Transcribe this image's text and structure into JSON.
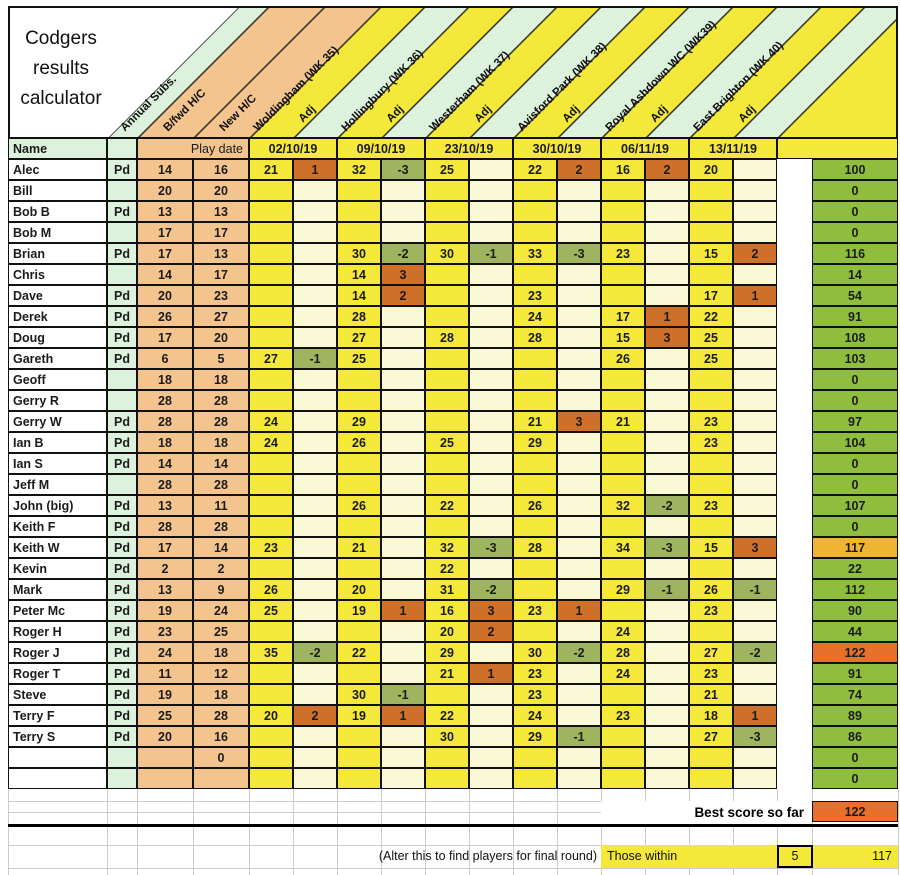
{
  "title": {
    "line1": "Codgers",
    "line2": "results",
    "line3": "calculator"
  },
  "colors": {
    "yellow": "#F4E83B",
    "mint": "#DDF2DC",
    "peach": "#F4C48F",
    "cream": "#FBF8D6",
    "olive": "#8FBE3F",
    "adj_pos": "#CE7029",
    "adj_neg": "#9FB45F",
    "amber": "#F0B432",
    "best": "#E7702B",
    "grid_line": "#cccccc",
    "border": "#111111"
  },
  "header": {
    "name_label": "Name",
    "play_date_label": "Play date",
    "bands": [
      {
        "label": "Annual Subs.",
        "kind": "subs"
      },
      {
        "label": "B/fwd H/C",
        "kind": "hc"
      },
      {
        "label": "New H/C",
        "kind": "hc"
      },
      {
        "label": "Woldingham (WK 35)",
        "kind": "course"
      },
      {
        "label": "Adj",
        "kind": "adj"
      },
      {
        "label": "Hollingbury (WK 36)",
        "kind": "course"
      },
      {
        "label": "Adj",
        "kind": "adj"
      },
      {
        "label": "Westerham (WK 37)",
        "kind": "course"
      },
      {
        "label": "Adj",
        "kind": "adj"
      },
      {
        "label": "Avisford Park (WK 38)",
        "kind": "course"
      },
      {
        "label": "Adj",
        "kind": "adj"
      },
      {
        "label": "Royal Ashdown WC (WK39)",
        "kind": "course"
      },
      {
        "label": "Adj",
        "kind": "adj"
      },
      {
        "label": "East Brighton (WK 40)",
        "kind": "course"
      },
      {
        "label": "Adj",
        "kind": "adj"
      }
    ],
    "dates": [
      "02/10/19",
      "09/10/19",
      "23/10/19",
      "30/10/19",
      "06/11/19",
      "13/11/19"
    ]
  },
  "rows": [
    {
      "name": "Alec",
      "pd": "Pd",
      "bfwd": "14",
      "nhc": "16",
      "scores": [
        "21",
        "1",
        "32",
        "-3",
        "25",
        "",
        "22",
        "2",
        "16",
        "2",
        "20",
        ""
      ],
      "total": "100",
      "hl": ""
    },
    {
      "name": "Bill",
      "pd": "",
      "bfwd": "20",
      "nhc": "20",
      "scores": [
        "",
        "",
        "",
        "",
        "",
        "",
        "",
        "",
        "",
        "",
        "",
        ""
      ],
      "total": "0",
      "hl": ""
    },
    {
      "name": "Bob B",
      "pd": "Pd",
      "bfwd": "13",
      "nhc": "13",
      "scores": [
        "",
        "",
        "",
        "",
        "",
        "",
        "",
        "",
        "",
        "",
        "",
        ""
      ],
      "total": "0",
      "hl": ""
    },
    {
      "name": "Bob M",
      "pd": "",
      "bfwd": "17",
      "nhc": "17",
      "scores": [
        "",
        "",
        "",
        "",
        "",
        "",
        "",
        "",
        "",
        "",
        "",
        ""
      ],
      "total": "0",
      "hl": ""
    },
    {
      "name": "Brian",
      "pd": "Pd",
      "bfwd": "17",
      "nhc": "13",
      "scores": [
        "",
        "",
        "30",
        "-2",
        "30",
        "-1",
        "33",
        "-3",
        "23",
        "",
        "15",
        "2"
      ],
      "total": "116",
      "hl": ""
    },
    {
      "name": "Chris",
      "pd": "",
      "bfwd": "14",
      "nhc": "17",
      "scores": [
        "",
        "",
        "14",
        "3",
        "",
        "",
        "",
        "",
        "",
        "",
        "",
        ""
      ],
      "total": "14",
      "hl": ""
    },
    {
      "name": "Dave",
      "pd": "Pd",
      "bfwd": "20",
      "nhc": "23",
      "scores": [
        "",
        "",
        "14",
        "2",
        "",
        "",
        "23",
        "",
        "",
        "",
        "17",
        "1"
      ],
      "total": "54",
      "hl": ""
    },
    {
      "name": "Derek",
      "pd": "Pd",
      "bfwd": "26",
      "nhc": "27",
      "scores": [
        "",
        "",
        "28",
        "",
        "",
        "",
        "24",
        "",
        "17",
        "1",
        "22",
        ""
      ],
      "total": "91",
      "hl": ""
    },
    {
      "name": "Doug",
      "pd": "Pd",
      "bfwd": "17",
      "nhc": "20",
      "scores": [
        "",
        "",
        "27",
        "",
        "28",
        "",
        "28",
        "",
        "15",
        "3",
        "25",
        ""
      ],
      "total": "108",
      "hl": ""
    },
    {
      "name": "Gareth",
      "pd": "Pd",
      "bfwd": "6",
      "nhc": "5",
      "scores": [
        "27",
        "-1",
        "25",
        "",
        "",
        "",
        "",
        "",
        "26",
        "",
        "25",
        ""
      ],
      "total": "103",
      "hl": ""
    },
    {
      "name": "Geoff",
      "pd": "",
      "bfwd": "18",
      "nhc": "18",
      "scores": [
        "",
        "",
        "",
        "",
        "",
        "",
        "",
        "",
        "",
        "",
        "",
        ""
      ],
      "total": "0",
      "hl": ""
    },
    {
      "name": "Gerry R",
      "pd": "",
      "bfwd": "28",
      "nhc": "28",
      "scores": [
        "",
        "",
        "",
        "",
        "",
        "",
        "",
        "",
        "",
        "",
        "",
        ""
      ],
      "total": "0",
      "hl": ""
    },
    {
      "name": "Gerry W",
      "pd": "Pd",
      "bfwd": "28",
      "nhc": "28",
      "scores": [
        "24",
        "",
        "29",
        "",
        "",
        "",
        "21",
        "3",
        "21",
        "",
        "23",
        ""
      ],
      "total": "97",
      "hl": ""
    },
    {
      "name": "Ian B",
      "pd": "Pd",
      "bfwd": "18",
      "nhc": "18",
      "scores": [
        "24",
        "",
        "26",
        "",
        "25",
        "",
        "29",
        "",
        "",
        "",
        "23",
        ""
      ],
      "total": "104",
      "hl": ""
    },
    {
      "name": "Ian S",
      "pd": "Pd",
      "bfwd": "14",
      "nhc": "14",
      "scores": [
        "",
        "",
        "",
        "",
        "",
        "",
        "",
        "",
        "",
        "",
        "",
        ""
      ],
      "total": "0",
      "hl": ""
    },
    {
      "name": "Jeff M",
      "pd": "",
      "bfwd": "28",
      "nhc": "28",
      "scores": [
        "",
        "",
        "",
        "",
        "",
        "",
        "",
        "",
        "",
        "",
        "",
        ""
      ],
      "total": "0",
      "hl": ""
    },
    {
      "name": "John (big)",
      "pd": "Pd",
      "bfwd": "13",
      "nhc": "11",
      "scores": [
        "",
        "",
        "26",
        "",
        "22",
        "",
        "26",
        "",
        "32",
        "-2",
        "23",
        ""
      ],
      "total": "107",
      "hl": ""
    },
    {
      "name": "Keith F",
      "pd": "Pd",
      "bfwd": "28",
      "nhc": "28",
      "scores": [
        "",
        "",
        "",
        "",
        "",
        "",
        "",
        "",
        "",
        "",
        "",
        ""
      ],
      "total": "0",
      "hl": ""
    },
    {
      "name": "Keith W",
      "pd": "Pd",
      "bfwd": "17",
      "nhc": "14",
      "scores": [
        "23",
        "",
        "21",
        "",
        "32",
        "-3",
        "28",
        "",
        "34",
        "-3",
        "15",
        "3"
      ],
      "total": "117",
      "hl": "amber"
    },
    {
      "name": "Kevin",
      "pd": "Pd",
      "bfwd": "2",
      "nhc": "2",
      "scores": [
        "",
        "",
        "",
        "",
        "22",
        "",
        "",
        "",
        "",
        "",
        "",
        ""
      ],
      "total": "22",
      "hl": ""
    },
    {
      "name": "Mark",
      "pd": "Pd",
      "bfwd": "13",
      "nhc": "9",
      "scores": [
        "26",
        "",
        "20",
        "",
        "31",
        "-2",
        "",
        "",
        "29",
        "-1",
        "26",
        "-1"
      ],
      "total": "112",
      "hl": ""
    },
    {
      "name": "Peter Mc",
      "pd": "Pd",
      "bfwd": "19",
      "nhc": "24",
      "scores": [
        "25",
        "",
        "19",
        "1",
        "16",
        "3",
        "23",
        "1",
        "",
        "",
        "23",
        ""
      ],
      "total": "90",
      "hl": ""
    },
    {
      "name": "Roger H",
      "pd": "Pd",
      "bfwd": "23",
      "nhc": "25",
      "scores": [
        "",
        "",
        "",
        "",
        "20",
        "2",
        "",
        "",
        "24",
        "",
        "",
        ""
      ],
      "total": "44",
      "hl": ""
    },
    {
      "name": "Roger J",
      "pd": "Pd",
      "bfwd": "24",
      "nhc": "18",
      "scores": [
        "35",
        "-2",
        "22",
        "",
        "29",
        "",
        "30",
        "-2",
        "28",
        "",
        "27",
        "-2"
      ],
      "total": "122",
      "hl": "best"
    },
    {
      "name": "Roger T",
      "pd": "Pd",
      "bfwd": "11",
      "nhc": "12",
      "scores": [
        "",
        "",
        "",
        "",
        "21",
        "1",
        "23",
        "",
        "24",
        "",
        "23",
        ""
      ],
      "total": "91",
      "hl": ""
    },
    {
      "name": "Steve",
      "pd": "Pd",
      "bfwd": "19",
      "nhc": "18",
      "scores": [
        "",
        "",
        "30",
        "-1",
        "",
        "",
        "23",
        "",
        "",
        "",
        "21",
        ""
      ],
      "total": "74",
      "hl": ""
    },
    {
      "name": "Terry F",
      "pd": "Pd",
      "bfwd": "25",
      "nhc": "28",
      "scores": [
        "20",
        "2",
        "19",
        "1",
        "22",
        "",
        "24",
        "",
        "23",
        "",
        "18",
        "1"
      ],
      "total": "89",
      "hl": ""
    },
    {
      "name": "Terry S",
      "pd": "Pd",
      "bfwd": "20",
      "nhc": "16",
      "scores": [
        "",
        "",
        "",
        "",
        "30",
        "",
        "29",
        "-1",
        "",
        "",
        "27",
        "-3"
      ],
      "total": "86",
      "hl": ""
    },
    {
      "name": "",
      "pd": "",
      "bfwd": "",
      "nhc": "0",
      "scores": [
        "",
        "",
        "",
        "",
        "",
        "",
        "",
        "",
        "",
        "",
        "",
        ""
      ],
      "total": "0",
      "hl": ""
    },
    {
      "name": "",
      "pd": "",
      "bfwd": "",
      "nhc": "",
      "scores": [
        "",
        "",
        "",
        "",
        "",
        "",
        "",
        "",
        "",
        "",
        "",
        ""
      ],
      "total": "0",
      "hl": ""
    }
  ],
  "footer": {
    "best_score_label": "Best score so far",
    "best_score": "122",
    "alter_note": "(Alter this to find players for final round)",
    "those_within_label": "Those within",
    "within_value": "5",
    "within_result": "117"
  }
}
